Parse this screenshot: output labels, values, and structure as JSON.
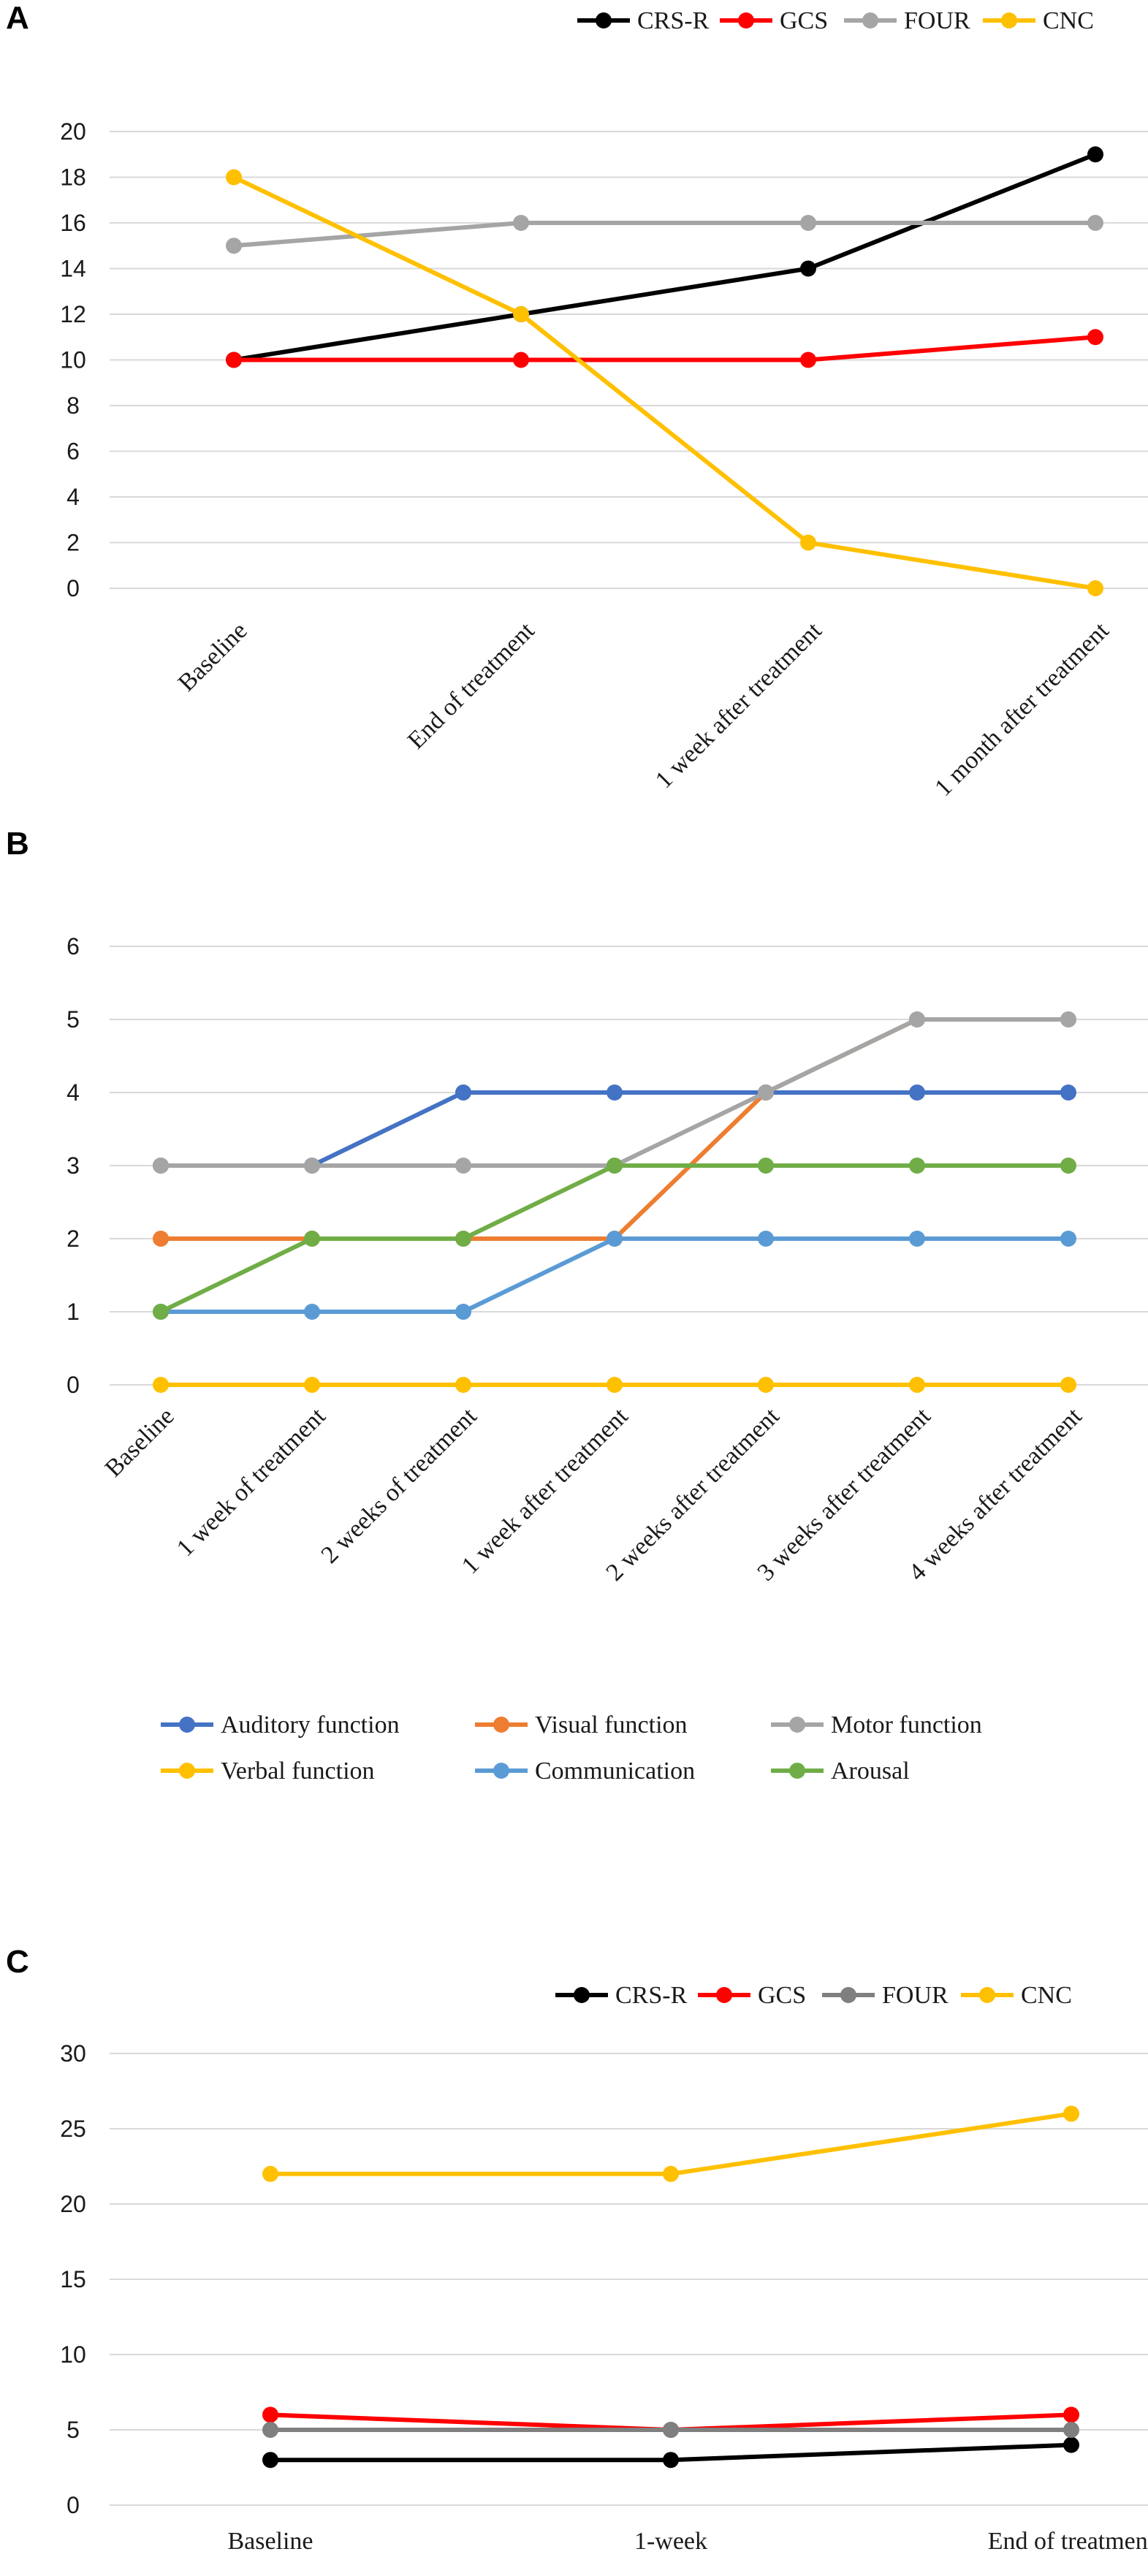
{
  "chart_data": [
    {
      "panel": "A",
      "type": "line",
      "categories": [
        "Baseline",
        "End of treatment",
        "1 week after treatment",
        "1 month after treatment"
      ],
      "ylim": [
        0,
        20
      ],
      "yticks": [
        "0",
        "2",
        "4",
        "6",
        "8",
        "10",
        "12",
        "14",
        "16",
        "18",
        "20"
      ],
      "legend_position": "top-right",
      "series": [
        {
          "name": "CRS-R",
          "color": "#000000",
          "values": [
            10,
            12,
            14,
            19
          ]
        },
        {
          "name": "GCS",
          "color": "#ff0000",
          "values": [
            10,
            10,
            10,
            11
          ]
        },
        {
          "name": "FOUR",
          "color": "#a5a5a5",
          "values": [
            15,
            16,
            16,
            16
          ]
        },
        {
          "name": "CNC",
          "color": "#ffc000",
          "values": [
            18,
            12,
            2,
            0
          ]
        }
      ]
    },
    {
      "panel": "B",
      "type": "line",
      "categories": [
        "Baseline",
        "1 week of treatment",
        "2 weeks of treatment",
        "1 week after treatment",
        "2 weeks after treatment",
        "3 weeks after treatment",
        "4 weeks after treatment"
      ],
      "ylim": [
        0,
        6
      ],
      "yticks": [
        "0",
        "1",
        "2",
        "3",
        "4",
        "5",
        "6"
      ],
      "legend_position": "bottom",
      "series": [
        {
          "name": "Auditory function",
          "color": "#4472c4",
          "values": [
            3,
            3,
            4,
            4,
            4,
            4,
            4
          ]
        },
        {
          "name": "Visual function",
          "color": "#ed7d31",
          "values": [
            2,
            2,
            2,
            2,
            4,
            5,
            5
          ]
        },
        {
          "name": "Motor function",
          "color": "#a5a5a5",
          "values": [
            3,
            3,
            3,
            3,
            4,
            5,
            5
          ]
        },
        {
          "name": "Verbal function",
          "color": "#ffc000",
          "values": [
            0,
            0,
            0,
            0,
            0,
            0,
            0
          ]
        },
        {
          "name": "Communication",
          "color": "#5b9bd5",
          "values": [
            1,
            1,
            1,
            2,
            2,
            2,
            2
          ]
        },
        {
          "name": "Arousal",
          "color": "#70ad47",
          "values": [
            1,
            2,
            2,
            3,
            3,
            3,
            3
          ]
        }
      ]
    },
    {
      "panel": "C",
      "type": "line",
      "categories": [
        "Baseline",
        "1-week",
        "End of treatment"
      ],
      "ylim": [
        0,
        30
      ],
      "yticks": [
        "0",
        "5",
        "10",
        "15",
        "20",
        "25",
        "30"
      ],
      "legend_position": "top-right",
      "series": [
        {
          "name": "CRS-R",
          "color": "#000000",
          "values": [
            3,
            3,
            4
          ]
        },
        {
          "name": "GCS",
          "color": "#ff0000",
          "values": [
            6,
            5,
            6
          ]
        },
        {
          "name": "FOUR",
          "color": "#7f7f7f",
          "values": [
            5,
            5,
            5
          ]
        },
        {
          "name": "CNC",
          "color": "#ffc000",
          "values": [
            22,
            22,
            26
          ]
        }
      ]
    }
  ]
}
